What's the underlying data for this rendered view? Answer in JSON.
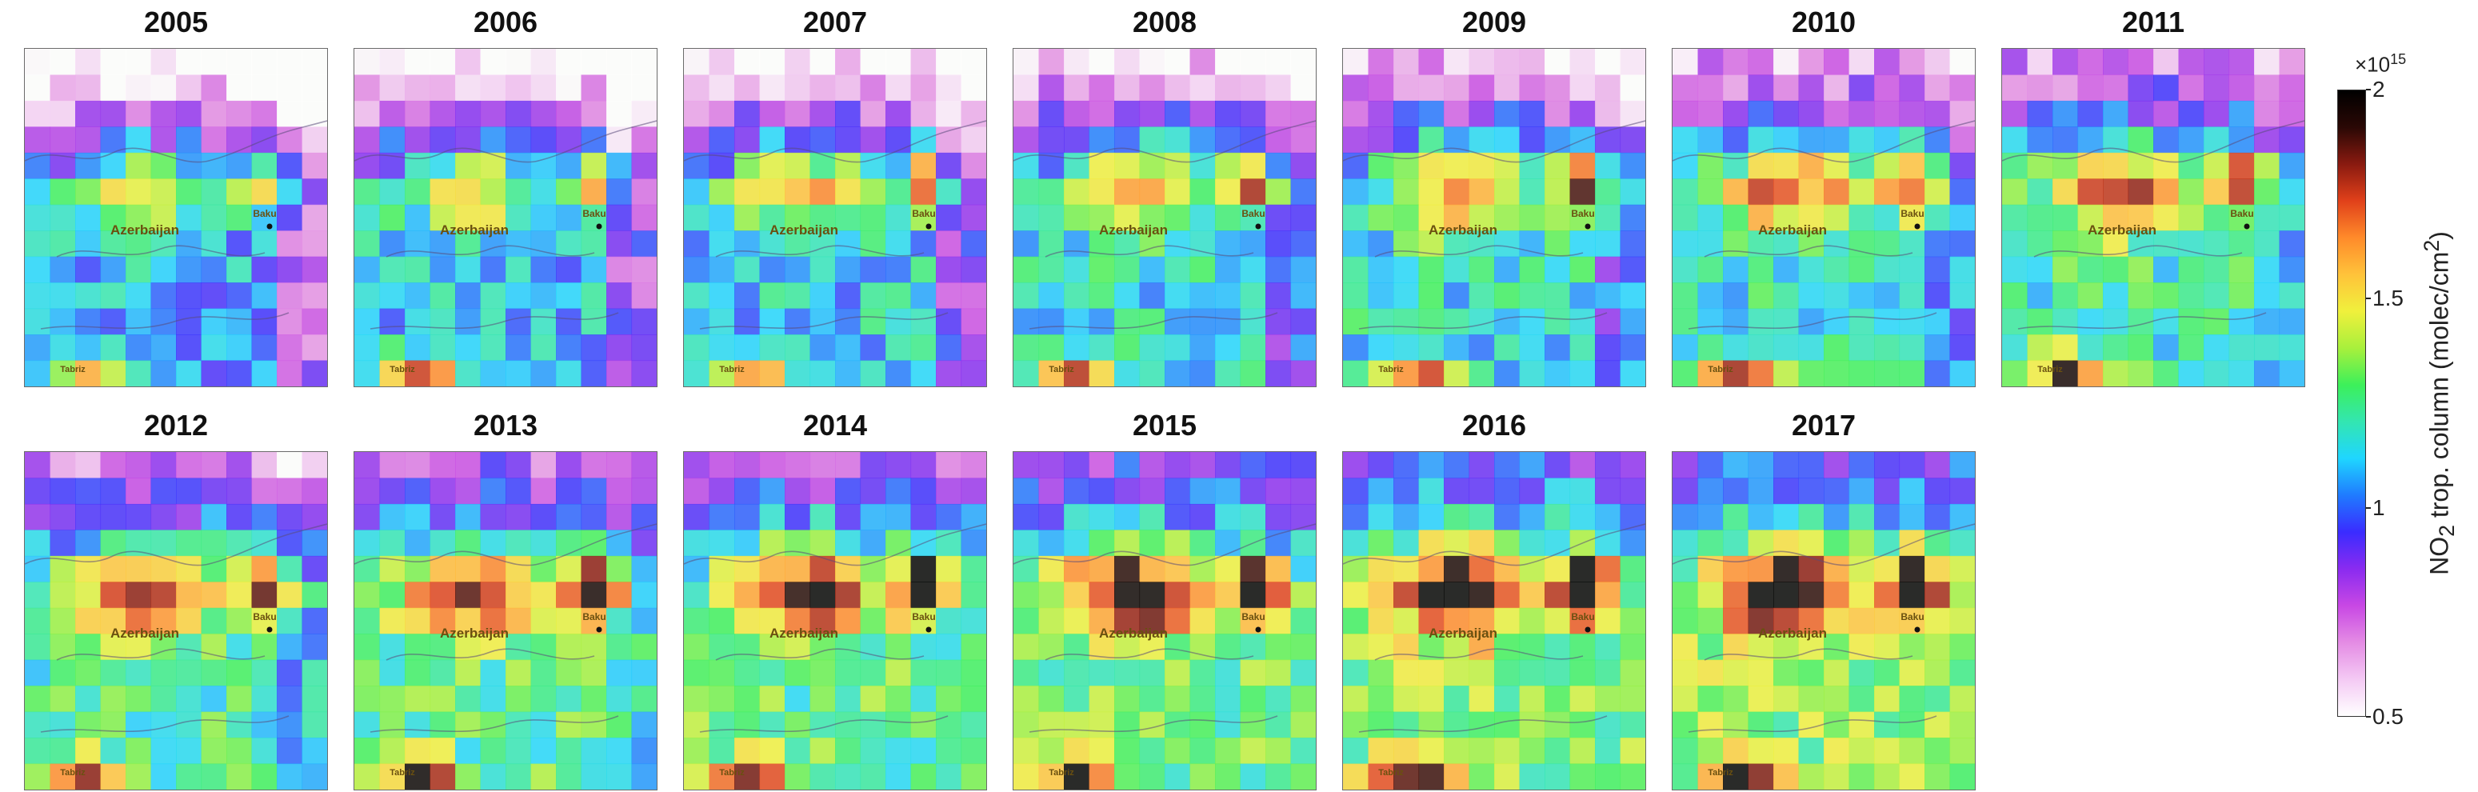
{
  "panels": [
    {
      "year": "2005"
    },
    {
      "year": "2006"
    },
    {
      "year": "2007"
    },
    {
      "year": "2008"
    },
    {
      "year": "2009"
    },
    {
      "year": "2010"
    },
    {
      "year": "2011"
    },
    {
      "year": "2012"
    },
    {
      "year": "2013"
    },
    {
      "year": "2014"
    },
    {
      "year": "2015"
    },
    {
      "year": "2016"
    },
    {
      "year": "2017"
    }
  ],
  "map_labels": {
    "country": "Azerbaijan",
    "capital": "Baku",
    "city_south": "Tabriz"
  },
  "colorbar": {
    "multiplier_base": "×10",
    "multiplier_exp": "15",
    "ticks": [
      "0.5",
      "1",
      "1.5",
      "2"
    ],
    "tick_values": [
      0.5,
      1.0,
      1.5,
      2.0
    ],
    "range": [
      0.5,
      2.0
    ],
    "label_main": "NO",
    "label_sub": "2",
    "label_rest": " trop. column (molec/cm",
    "label_sup": "2",
    "label_end": ")",
    "colormap": [
      "#ffffff",
      "#f4c9f4",
      "#e48be4",
      "#c848e4",
      "#8a2bf0",
      "#3a2cff",
      "#1f7bff",
      "#1fd6ff",
      "#33e6b0",
      "#3cf05a",
      "#a8f03c",
      "#f0f03c",
      "#ffc23a",
      "#ff8a2a",
      "#e0401a",
      "#8a1a10",
      "#2a0805",
      "#000000"
    ]
  }
}
